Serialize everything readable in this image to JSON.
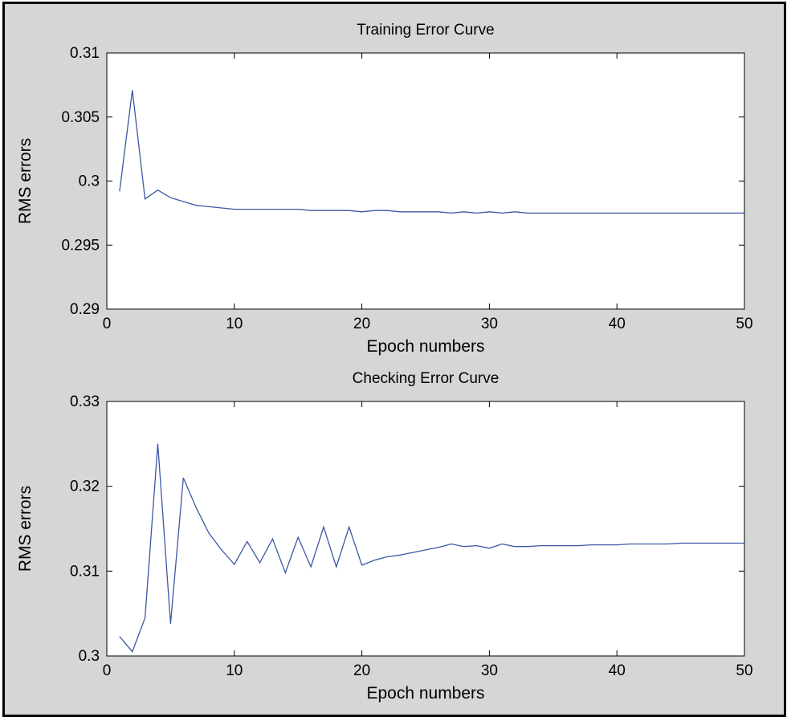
{
  "colors": {
    "figure_bg": "#d6d6d6",
    "axes_bg": "#ffffff",
    "line": "#3c57a6",
    "frame": "#000000"
  },
  "chart_data": [
    {
      "type": "line",
      "title": "Training Error Curve",
      "xlabel": "Epoch numbers",
      "ylabel": "RMS errors",
      "xlim": [
        0,
        50
      ],
      "ylim": [
        0.29,
        0.31
      ],
      "xticks": [
        0,
        10,
        20,
        30,
        40,
        50
      ],
      "xtick_labels": [
        "0",
        "10",
        "20",
        "30",
        "40",
        "50"
      ],
      "yticks": [
        0.29,
        0.295,
        0.3,
        0.305,
        0.31
      ],
      "ytick_labels": [
        "0.29",
        "0.295",
        "0.3",
        "0.305",
        "0.31"
      ],
      "grid": false,
      "series": [
        {
          "x": [
            1,
            2,
            3,
            4,
            5,
            6,
            7,
            8,
            9,
            10,
            11,
            12,
            13,
            14,
            15,
            16,
            17,
            18,
            19,
            20,
            21,
            22,
            23,
            24,
            25,
            26,
            27,
            28,
            29,
            30,
            31,
            32,
            33,
            34,
            35,
            36,
            37,
            38,
            39,
            40,
            41,
            42,
            43,
            44,
            45,
            46,
            47,
            48,
            49,
            50
          ],
          "values": [
            0.2992,
            0.3071,
            0.2986,
            0.2993,
            0.2987,
            0.2984,
            0.2981,
            0.298,
            0.2979,
            0.2978,
            0.2978,
            0.2978,
            0.2978,
            0.2978,
            0.2978,
            0.2977,
            0.2977,
            0.2977,
            0.2977,
            0.2976,
            0.2977,
            0.2977,
            0.2976,
            0.2976,
            0.2976,
            0.2976,
            0.2975,
            0.2976,
            0.2975,
            0.2976,
            0.2975,
            0.2976,
            0.2975,
            0.2975,
            0.2975,
            0.2975,
            0.2975,
            0.2975,
            0.2975,
            0.2975,
            0.2975,
            0.2975,
            0.2975,
            0.2975,
            0.2975,
            0.2975,
            0.2975,
            0.2975,
            0.2975,
            0.2975
          ]
        }
      ]
    },
    {
      "type": "line",
      "title": "Checking Error Curve",
      "xlabel": "Epoch numbers",
      "ylabel": "RMS errors",
      "xlim": [
        0,
        50
      ],
      "ylim": [
        0.3,
        0.33
      ],
      "xticks": [
        0,
        10,
        20,
        30,
        40,
        50
      ],
      "xtick_labels": [
        "0",
        "10",
        "20",
        "30",
        "40",
        "50"
      ],
      "yticks": [
        0.3,
        0.31,
        0.32,
        0.33
      ],
      "ytick_labels": [
        "0.3",
        "0.31",
        "0.32",
        "0.33"
      ],
      "grid": false,
      "series": [
        {
          "x": [
            1,
            2,
            3,
            4,
            5,
            6,
            7,
            8,
            9,
            10,
            11,
            12,
            13,
            14,
            15,
            16,
            17,
            18,
            19,
            20,
            21,
            22,
            23,
            24,
            25,
            26,
            27,
            28,
            29,
            30,
            31,
            32,
            33,
            34,
            35,
            36,
            37,
            38,
            39,
            40,
            41,
            42,
            43,
            44,
            45,
            46,
            47,
            48,
            49,
            50
          ],
          "values": [
            0.3023,
            0.3005,
            0.3045,
            0.325,
            0.3038,
            0.321,
            0.3175,
            0.3145,
            0.3125,
            0.3108,
            0.3135,
            0.311,
            0.3138,
            0.3098,
            0.314,
            0.3105,
            0.3152,
            0.3105,
            0.3152,
            0.3107,
            0.3113,
            0.3117,
            0.3119,
            0.3122,
            0.3125,
            0.3128,
            0.3132,
            0.3129,
            0.313,
            0.3127,
            0.3132,
            0.3129,
            0.3129,
            0.313,
            0.313,
            0.313,
            0.313,
            0.3131,
            0.3131,
            0.3131,
            0.3132,
            0.3132,
            0.3132,
            0.3132,
            0.3133,
            0.3133,
            0.3133,
            0.3133,
            0.3133,
            0.3133
          ]
        }
      ]
    }
  ]
}
